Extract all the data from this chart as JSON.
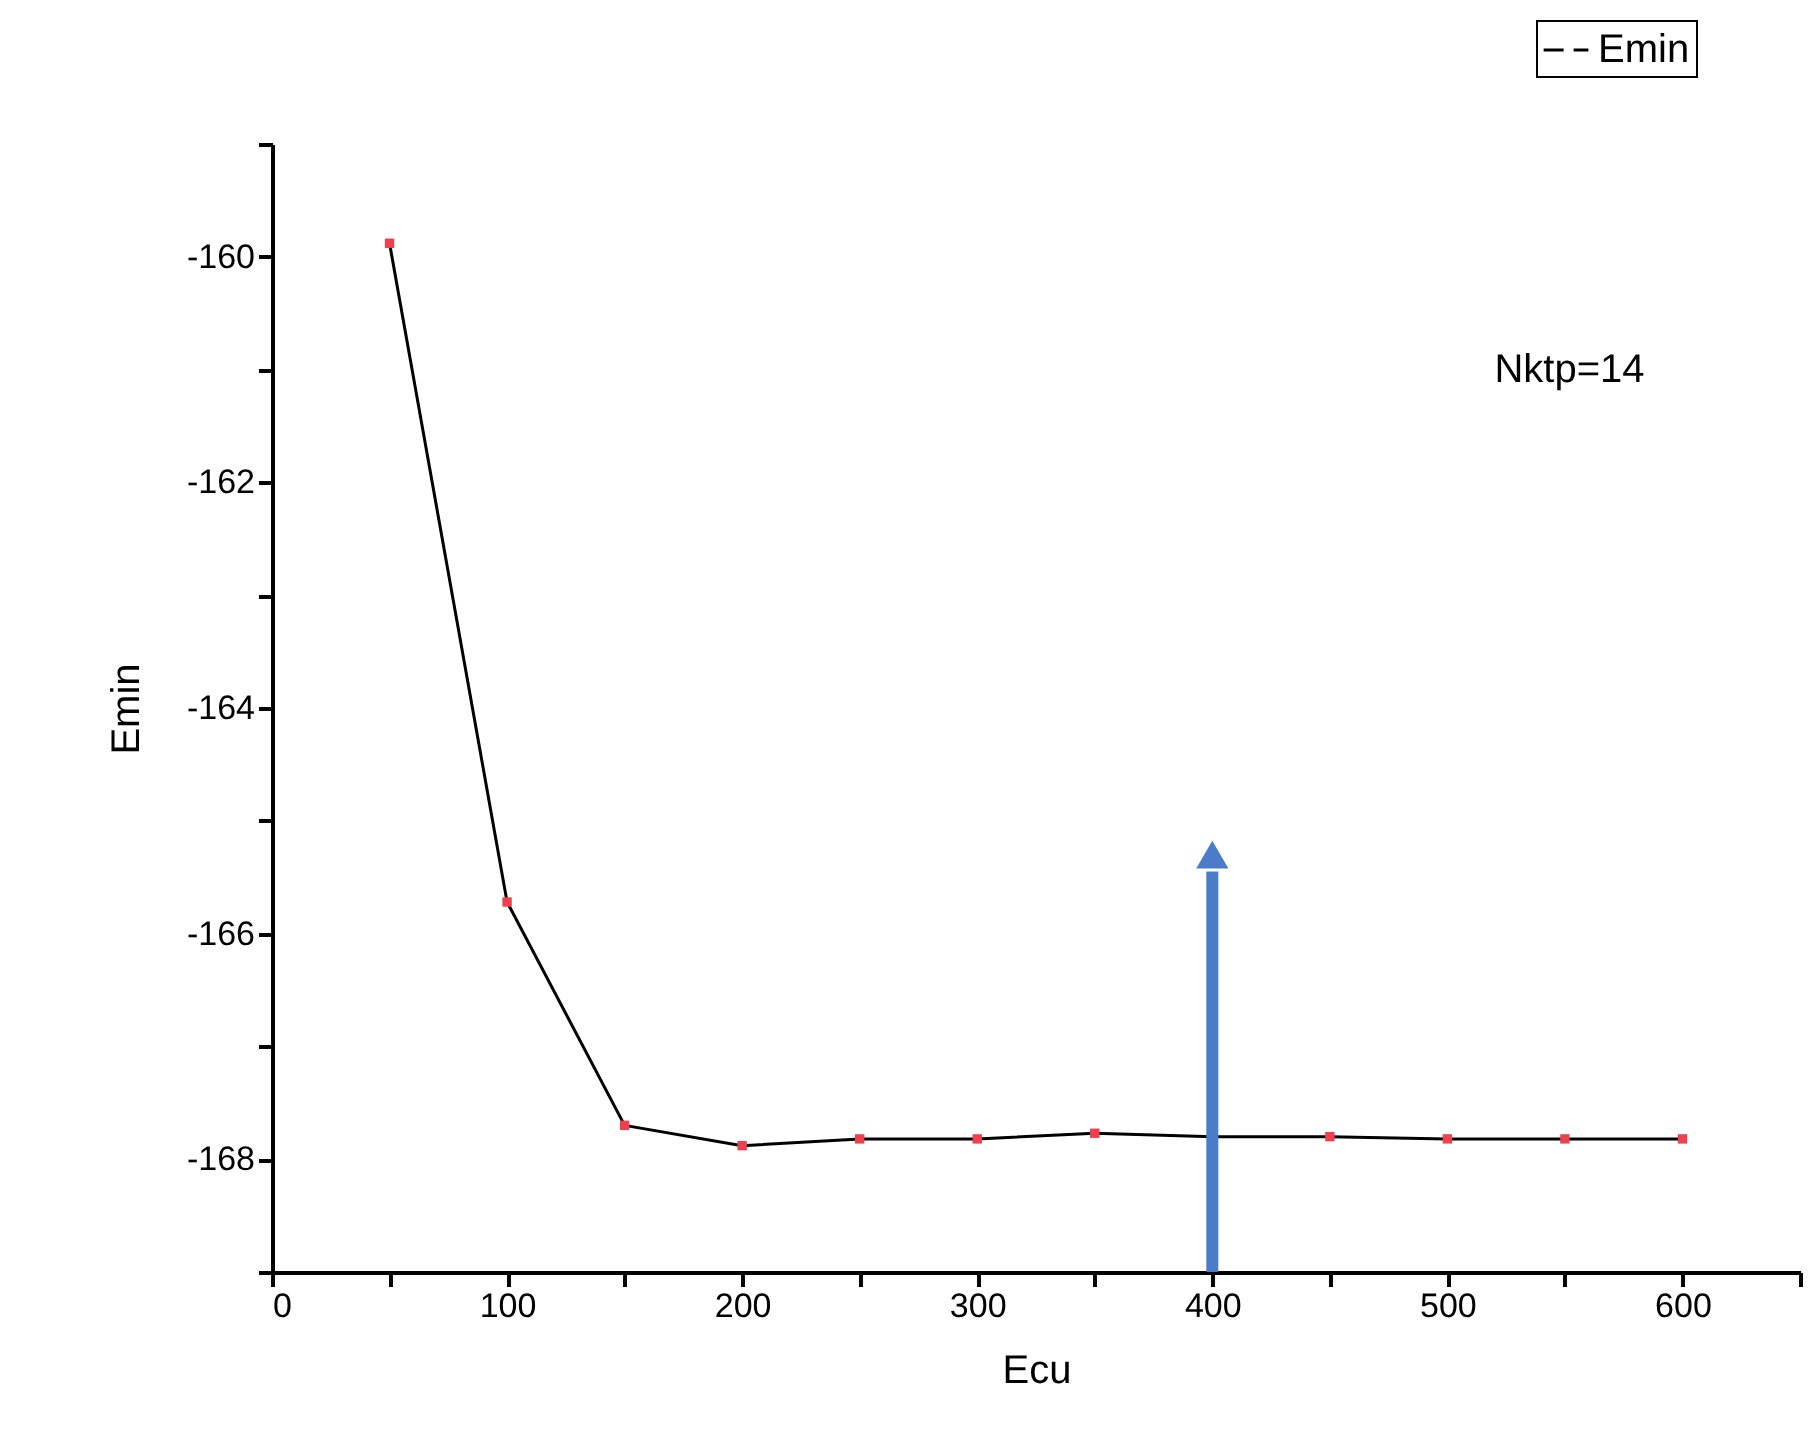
{
  "chart_data": {
    "type": "line",
    "xlabel": "Ecu",
    "ylabel": "Emin",
    "annotations": [
      "Nktp=14"
    ],
    "x": [
      50,
      100,
      150,
      200,
      250,
      300,
      350,
      400,
      450,
      500,
      550,
      600
    ],
    "series": [
      {
        "name": "Emin",
        "color": "#000000",
        "colors": [
          "#f04050",
          "#f04050",
          "#f04050",
          "#f04050",
          "#f04050",
          "#f04050",
          "#f04050",
          "#f04050",
          "#f04050",
          "#f04050",
          "#f04050",
          "#f04050"
        ],
        "values": [
          -159.88,
          -165.72,
          -167.7,
          -167.88,
          -167.82,
          -167.82,
          -167.77,
          -167.8,
          -167.8,
          -167.82,
          -167.82,
          -167.82
        ]
      }
    ],
    "xlim": [
      0,
      650
    ],
    "xticks": [
      0,
      {
        "value": 50,
        "label": null
      },
      100,
      {
        "value": 150,
        "label": null
      },
      200,
      {
        "value": 250,
        "label": null
      },
      300,
      {
        "value": 350,
        "label": null
      },
      400,
      {
        "value": 450,
        "label": null
      },
      500,
      {
        "value": 550,
        "label": null
      },
      600,
      {
        "value": 650,
        "label": null
      }
    ],
    "ylim": [
      -169,
      -159
    ],
    "yticks": [
      {
        "value": -169,
        "label": null
      },
      -168,
      {
        "value": -167,
        "label": null
      },
      -166,
      {
        "value": -165,
        "label": null
      },
      -164,
      {
        "value": -163,
        "label": null
      },
      -162,
      {
        "value": -161,
        "label": null
      },
      -160,
      {
        "value": -159,
        "label": null
      }
    ],
    "grid": false,
    "legend": "top right",
    "marker": "square",
    "line_style": "solid"
  }
}
